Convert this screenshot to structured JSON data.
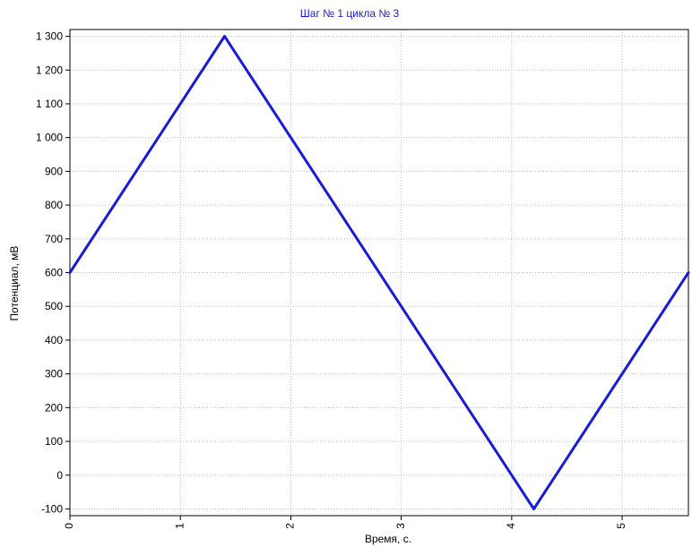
{
  "chart_data": {
    "type": "line",
    "title": "Шаг № 1 цикла № 3",
    "xlabel": "Время, с.",
    "ylabel": "Потенциал, мВ",
    "xlim": [
      0,
      5.6
    ],
    "ylim": [
      -120,
      1320
    ],
    "x_ticks": [
      0,
      1,
      2,
      3,
      4,
      5
    ],
    "x_tick_labels": [
      "0",
      "1",
      "2",
      "3",
      "4",
      "5"
    ],
    "y_ticks": [
      -100,
      0,
      100,
      200,
      300,
      400,
      500,
      600,
      700,
      800,
      900,
      1000,
      1100,
      1200,
      1300
    ],
    "y_tick_labels": [
      "-100",
      "0",
      "100",
      "200",
      "300",
      "400",
      "500",
      "600",
      "700",
      "800",
      "900",
      "1 000",
      "1 100",
      "1 200",
      "1 300"
    ],
    "grid": true,
    "series": [
      {
        "x": [
          0.0,
          1.4,
          4.2,
          5.6
        ],
        "y": [
          600,
          1300,
          -100,
          600
        ]
      }
    ],
    "colors": {
      "line": "#1a1adb",
      "title": "#1a1adb",
      "grid": "#bdbdbd"
    }
  }
}
